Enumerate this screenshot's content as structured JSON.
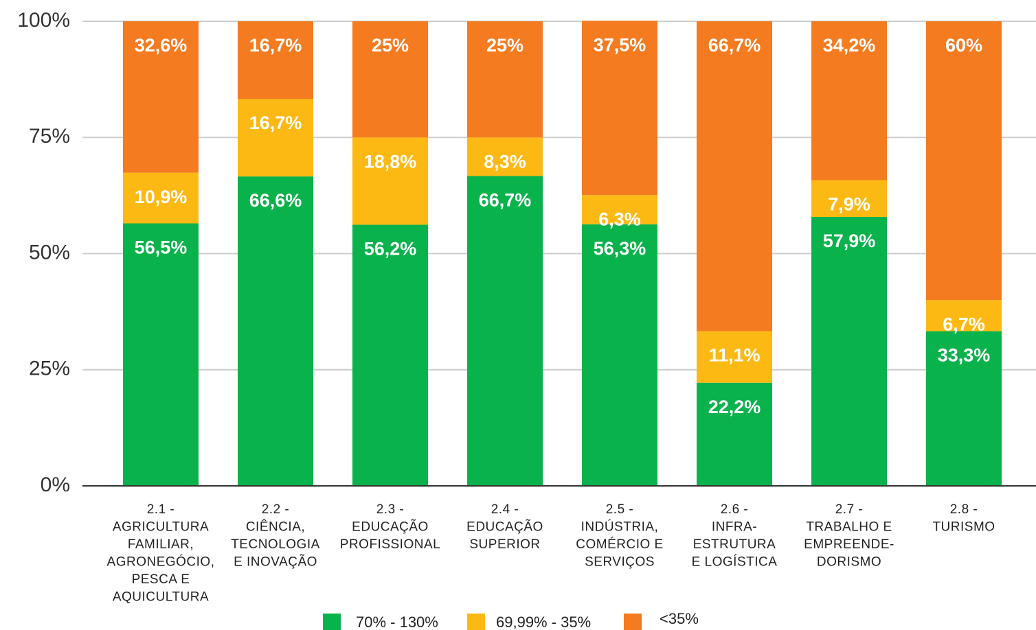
{
  "chart_data": {
    "type": "stacked_bar",
    "categories": [
      [
        "2.1 -",
        "AGRICULTURA",
        "FAMILIAR,",
        "AGRONEGÓCIO,",
        "PESCA E",
        "AQUICULTURA"
      ],
      [
        "2.2 -",
        "CIÊNCIA,",
        "TECNOLOGIA",
        "E INOVAÇÃO"
      ],
      [
        "2.3 -",
        "EDUCAÇÃO",
        "PROFISSIONAL"
      ],
      [
        "2.4 -",
        "EDUCAÇÃO",
        "SUPERIOR"
      ],
      [
        "2.5 -",
        "INDÚSTRIA,",
        "COMÉRCIO E",
        "SERVIÇOS"
      ],
      [
        "2.6 -",
        "INFRA-",
        "ESTRUTURA",
        "E LOGÍSTICA"
      ],
      [
        "2.7 -",
        "TRABALHO E",
        "EMPREENDE-",
        "DORISMO"
      ],
      [
        "2.8 -",
        "TURISMO"
      ]
    ],
    "series": [
      {
        "name": "70% - 130%",
        "color": "#0ab24c",
        "values": [
          56.5,
          66.6,
          56.2,
          66.7,
          56.3,
          22.2,
          57.9,
          33.3
        ],
        "value_labels": [
          "56,5%",
          "66,6%",
          "56,2%",
          "66,7%",
          "56,3%",
          "22,2%",
          "57,9%",
          "33,3%"
        ]
      },
      {
        "name": "69,99% - 35%",
        "color": "#fdb913",
        "values": [
          10.9,
          16.7,
          18.8,
          8.3,
          6.3,
          11.1,
          7.9,
          6.7
        ],
        "value_labels": [
          "10,9%",
          "16,7%",
          "18,8%",
          "8,3%",
          "6,3%",
          "11,1%",
          "7,9%",
          "6,7%"
        ]
      },
      {
        "name": "<35%",
        "color": "#f47b20",
        "values": [
          32.6,
          16.7,
          25,
          25,
          37.5,
          66.7,
          34.2,
          60
        ],
        "value_labels": [
          "32,6%",
          "16,7%",
          "25%",
          "25%",
          "37,5%",
          "66,7%",
          "34,2%",
          "60%"
        ]
      }
    ],
    "ylim": [
      0,
      100
    ],
    "yticks": [
      {
        "value": 0,
        "label": "0%"
      },
      {
        "value": 25,
        "label": "25%"
      },
      {
        "value": 50,
        "label": "50%"
      },
      {
        "value": 75,
        "label": "75%"
      },
      {
        "value": 100,
        "label": "100%"
      }
    ],
    "grid": true,
    "legend": "bottom"
  }
}
